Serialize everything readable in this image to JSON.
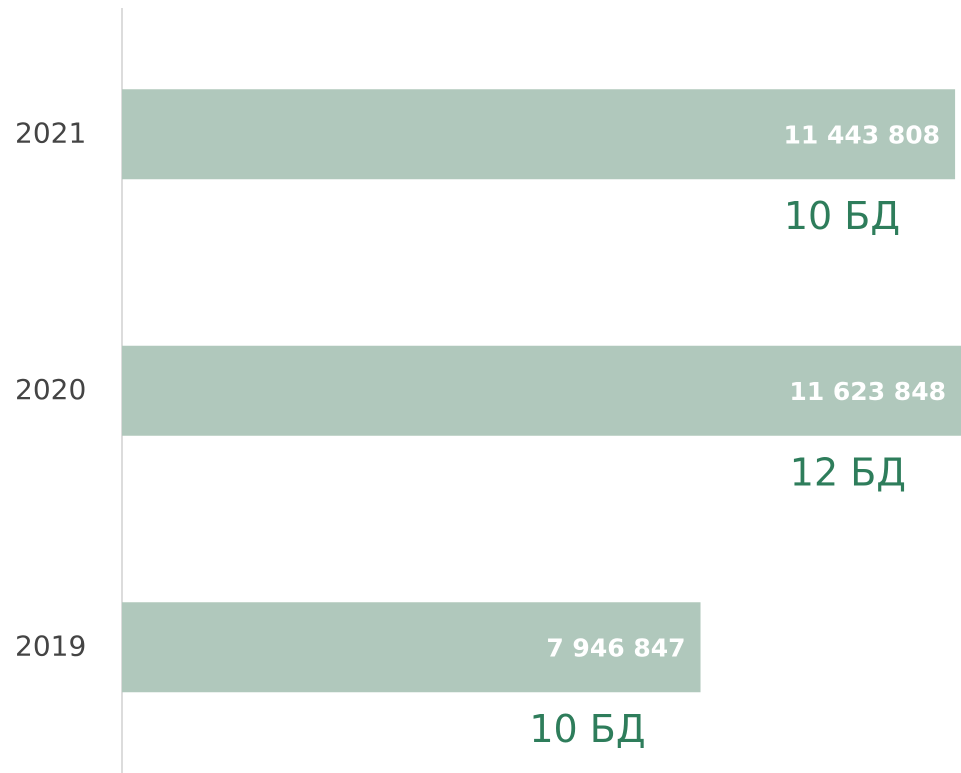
{
  "chart_data": {
    "type": "bar",
    "orientation": "horizontal",
    "categories": [
      "2021",
      "2020",
      "2019"
    ],
    "values": [
      11443808,
      11623848,
      7946847
    ],
    "value_labels": [
      "11 443 808",
      "11 623 848",
      "7 946 847"
    ],
    "annotations": [
      "10 БД",
      "12 БД",
      "10 БД"
    ],
    "color": "#b0c8bc",
    "xlim": [
      0,
      11525000
    ]
  }
}
